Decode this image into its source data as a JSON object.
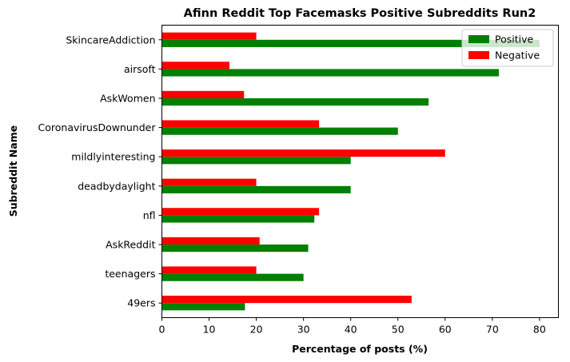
{
  "chart_data": {
    "type": "bar",
    "orientation": "horizontal",
    "title": "Afinn Reddit Top Facemasks Positive Subreddits Run2",
    "xlabel": "Percentage of posts (%)",
    "ylabel": "Subreddit Name",
    "categories": [
      "49ers",
      "teenagers",
      "AskReddit",
      "nfl",
      "deadbydaylight",
      "mildlyinteresting",
      "CoronavirusDownunder",
      "AskWomen",
      "airsoft",
      "SkincareAddiction"
    ],
    "series": [
      {
        "name": "Positive",
        "color": "#008000",
        "values": [
          17.6,
          30.0,
          31.0,
          32.3,
          40.0,
          40.0,
          50.0,
          56.5,
          71.4,
          80.0
        ]
      },
      {
        "name": "Negative",
        "color": "#ff0000",
        "values": [
          52.9,
          20.0,
          20.7,
          33.3,
          20.0,
          60.0,
          33.3,
          17.4,
          14.3,
          20.0
        ]
      }
    ],
    "xlim": [
      0,
      84
    ],
    "xticks": [
      0,
      10,
      20,
      30,
      40,
      50,
      60,
      70,
      80
    ],
    "grid": false,
    "legend_position": "top-right"
  }
}
